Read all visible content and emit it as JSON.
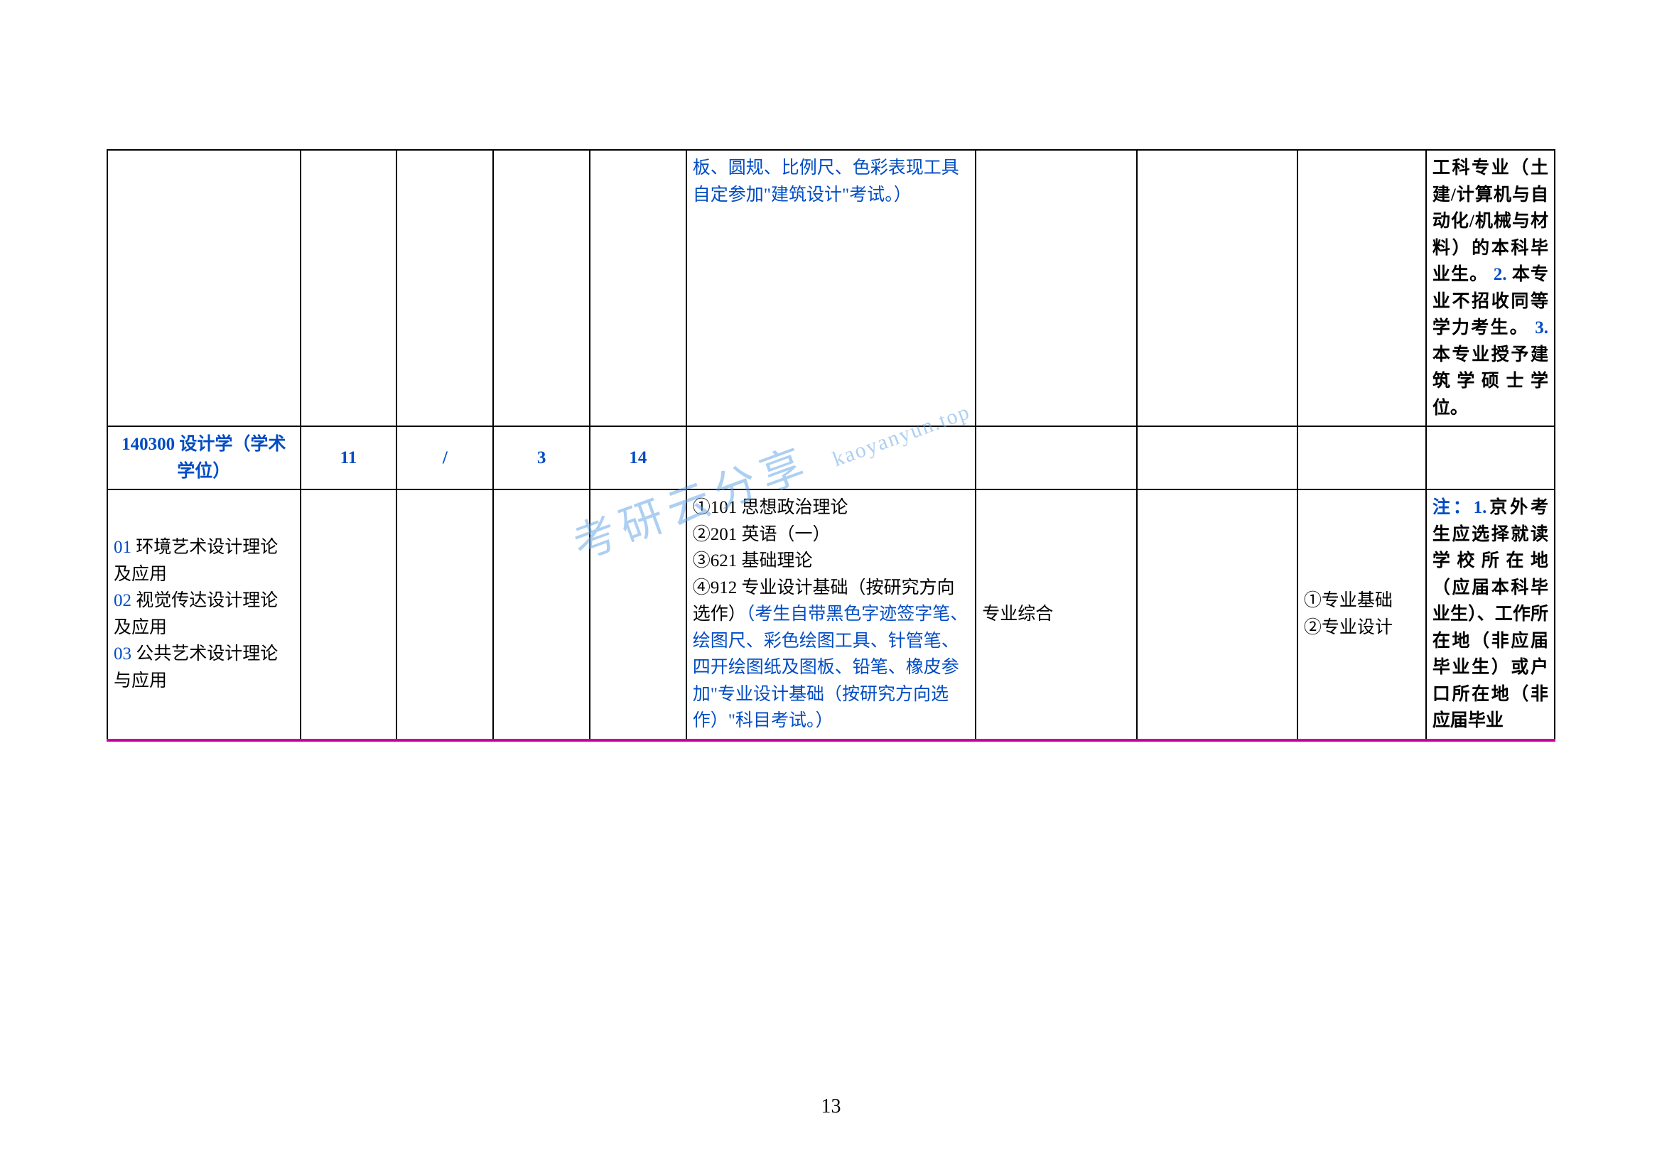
{
  "page_number": "13",
  "watermark": "考研云分享",
  "watermark_url": "kaoyanyun.top",
  "table": {
    "border_color": "#000000",
    "accent_color": "#004cc4",
    "bottom_rule_color": "#c400a4",
    "font_size": 25,
    "rows": [
      {
        "type": "carryover",
        "col6_blue": "板、圆规、比例尺、色彩表现工具自定参加\"建筑设计\"考试。）",
        "col10_parts": [
          {
            "text": "工科专业（土建/计算机与自动化/机械与材料）的本科毕业生。",
            "style": "black-bold"
          },
          {
            "text": "2.",
            "style": "blue-bold"
          },
          {
            "text": "本专业不招收同等学力考生。",
            "style": "black-bold"
          },
          {
            "text": "3.",
            "style": "blue-bold"
          },
          {
            "text": "本专业授予建筑学硕士学位。",
            "style": "black-bold"
          }
        ]
      },
      {
        "type": "header",
        "col1": "140300 设计学（学术学位）",
        "col2": "11",
        "col3": "/",
        "col4": "3",
        "col5": "14"
      },
      {
        "type": "detail",
        "col1_lines": [
          {
            "prefix": " 01 ",
            "label": "环境艺术设计理论及应用"
          },
          {
            "prefix": " 02 ",
            "label": "视觉传达设计理论及应用"
          },
          {
            "prefix": " 03 ",
            "label": "公共艺术设计理论与应用"
          }
        ],
        "col6_items": [
          {
            "marker": "①",
            "code": "101 思想政治理论",
            "black": true
          },
          {
            "marker": "②",
            "code": "201 英语（一）",
            "black": true
          },
          {
            "marker": "③",
            "code": "621 基础理论",
            "black": true
          },
          {
            "marker": "④",
            "code": "912 专业设计基础（按研究方向选作）",
            "black": true
          }
        ],
        "col6_note": "（考生自带黑色字迹签字笔、绘图尺、彩色绘图工具、针管笔、四开绘图纸及图板、铅笔、橡皮参加\"专业设计基础（按研究方向选作）\"科目考试。）",
        "col7": "专业综合",
        "col9_items": [
          "①专业基础",
          "②专业设计"
        ],
        "col10_parts": [
          {
            "text": "注：1.",
            "style": "blue-bold"
          },
          {
            "text": "京外考生应选择就读学校所在地（应届本科毕业生）、工作所在地（非应届毕业生）或户口所在地（非应届毕业",
            "style": "black-bold"
          }
        ]
      }
    ]
  },
  "colors": {
    "blue": "#004cc4",
    "black": "#000000",
    "magenta": "#c400a4",
    "watermark": "#6aa8e8",
    "background": "#ffffff"
  }
}
